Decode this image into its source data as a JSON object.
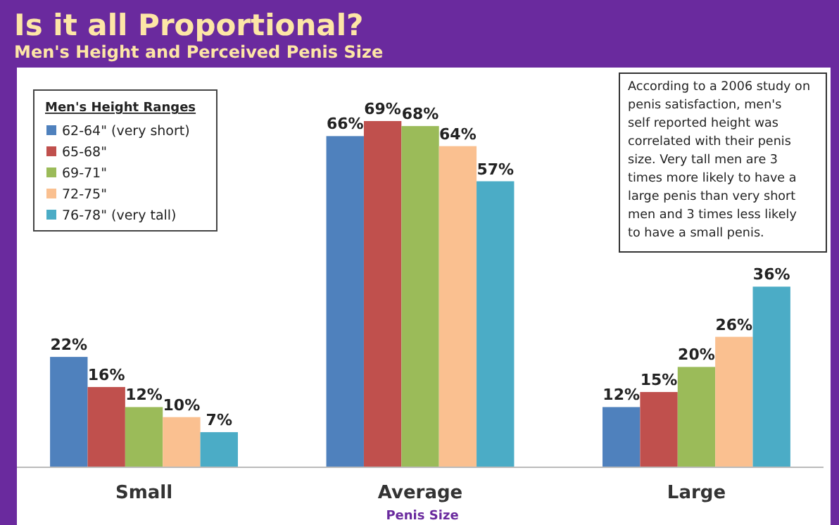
{
  "chart_data": {
    "type": "bar",
    "title": "Is it all Proportional?",
    "subtitle": "Men's Height and Perceived Penis Size",
    "xlabel": "Penis Size",
    "legend_title": "Men's Height Ranges",
    "legend": "top left",
    "categories": [
      "Small",
      "Average",
      "Large"
    ],
    "series": [
      {
        "name": "62-64\" (very short)",
        "color": "#4f81bd",
        "values": [
          22,
          66,
          12
        ],
        "value_labels": [
          "22%",
          "66%",
          "12%"
        ]
      },
      {
        "name": "65-68\"",
        "color": "#c0504d",
        "values": [
          16,
          69,
          15
        ],
        "value_labels": [
          "16%",
          "69%",
          "15%"
        ]
      },
      {
        "name": "69-71\"",
        "color": "#9bbb59",
        "values": [
          12,
          68,
          20
        ],
        "value_labels": [
          "12%",
          "68%",
          "20%"
        ]
      },
      {
        "name": "72-75\"",
        "color": "#fac090",
        "values": [
          10,
          64,
          26
        ],
        "value_labels": [
          "10%",
          "64%",
          "26%"
        ]
      },
      {
        "name": "76-78\" (very tall)",
        "color": "#4bacc6",
        "values": [
          7,
          57,
          36
        ],
        "value_labels": [
          "7%",
          "57%",
          "36%"
        ]
      }
    ],
    "annotations": [
      "According to a 2006 study on penis satisfaction, men's self reported height was correlated with their penis size. Very tall men are 3 times more likely to have a large penis than very short men and 3 times less likely to have a small penis."
    ]
  }
}
